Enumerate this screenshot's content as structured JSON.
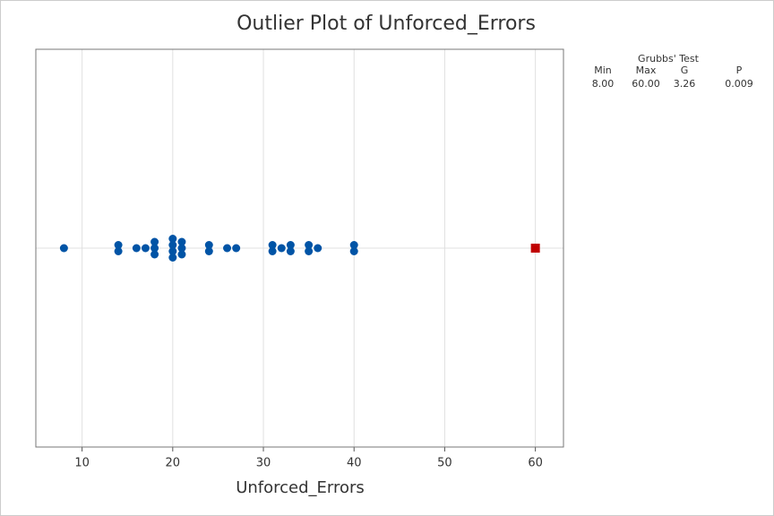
{
  "chart_data": {
    "type": "dotplot",
    "title": "Outlier Plot of Unforced_Errors",
    "x_label": "Unforced_Errors",
    "values": [
      8,
      14,
      14,
      16,
      17,
      18,
      18,
      18,
      20,
      20,
      20,
      20,
      21,
      21,
      21,
      24,
      24,
      26,
      27,
      31,
      31,
      32,
      33,
      33,
      35,
      35,
      36,
      40,
      40
    ],
    "color": "#0054a6",
    "outliers": [
      60
    ],
    "outlier_color": "#c00000",
    "xlim": [
      4.9,
      63.1
    ],
    "xticks": [
      10,
      20,
      30,
      40,
      50,
      60
    ],
    "grid": true,
    "stats": {
      "title": "Grubbs' Test",
      "columns": [
        "Min",
        "Max",
        "G",
        "P"
      ],
      "values": [
        "8.00",
        "60.00",
        "3.26",
        "0.009"
      ]
    }
  }
}
